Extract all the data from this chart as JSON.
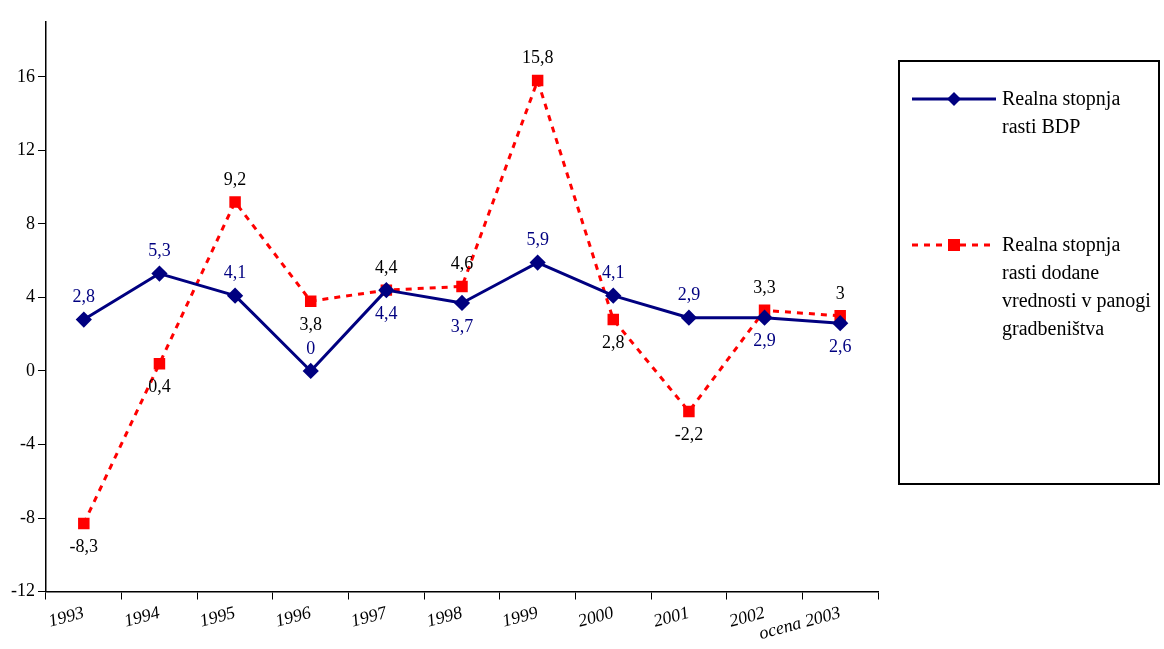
{
  "chart_data": {
    "type": "line",
    "categories": [
      "1993",
      "1994",
      "1995",
      "1996",
      "1997",
      "1998",
      "1999",
      "2000",
      "2001",
      "2002",
      "ocena 2003"
    ],
    "series": [
      {
        "name": "Realna stopnja rasti BDP",
        "color": "#000080",
        "marker": "diamond",
        "line_style": "solid",
        "values": [
          2.8,
          5.3,
          4.1,
          0,
          4.4,
          3.7,
          5.9,
          4.1,
          2.9,
          2.9,
          2.6
        ],
        "value_labels": [
          "2,8",
          "5,3",
          "4,1",
          "0",
          "4,4",
          "3,7",
          "5,9",
          "4,1",
          "2,9",
          "2,9",
          "2,6"
        ]
      },
      {
        "name": "Realna stopnja rasti dodane vrednosti v panogi gradbeništva",
        "color": "#ff0000",
        "marker": "square",
        "line_style": "dashed",
        "values": [
          -8.3,
          0.4,
          9.2,
          3.8,
          4.4,
          4.6,
          15.8,
          2.8,
          -2.2,
          3.3,
          3
        ],
        "value_labels": [
          "-8,3",
          "0,4",
          "9,2",
          "3,8",
          "4,4",
          "4,6",
          "15,8",
          "2,8",
          "-2,2",
          "3,3",
          "3"
        ]
      }
    ],
    "ylim": [
      -12,
      19
    ],
    "yticks": [
      -12,
      -8,
      -4,
      0,
      4,
      8,
      12,
      16
    ],
    "grid": false,
    "legend": "right"
  }
}
